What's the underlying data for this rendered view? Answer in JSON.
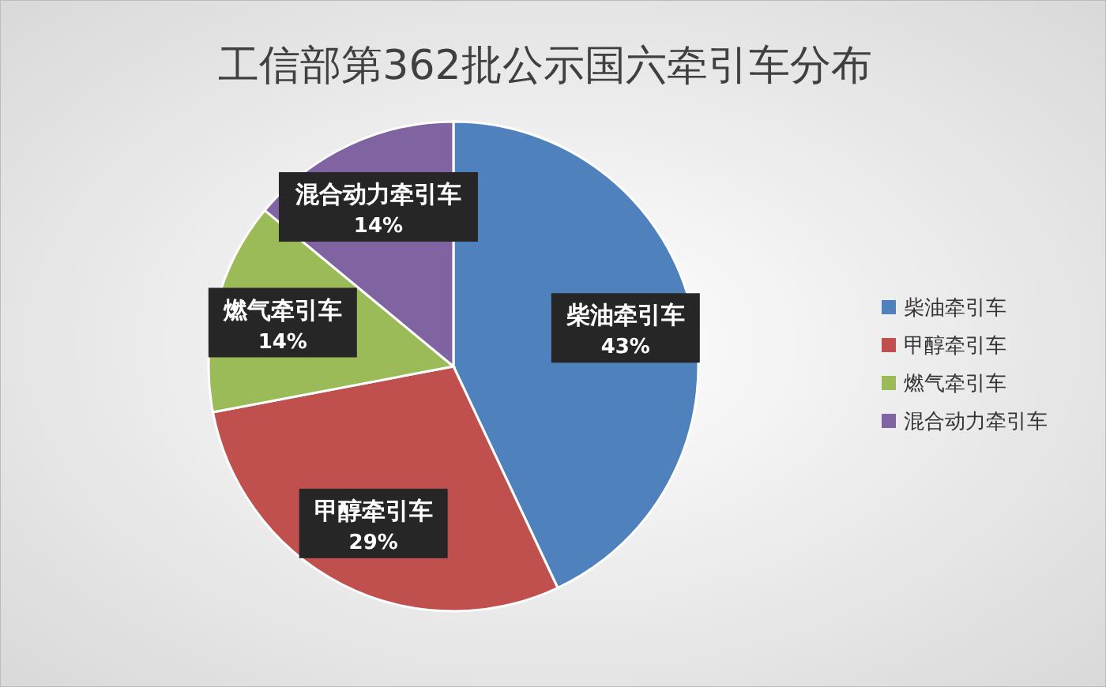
{
  "chart_data": {
    "type": "pie",
    "title": "工信部第362批公示国六牵引车分布",
    "categories": [
      "柴油牵引车",
      "甲醇牵引车",
      "燃气牵引车",
      "混合动力牵引车"
    ],
    "values": [
      43,
      29,
      14,
      14
    ],
    "colors": [
      "#4f81bd",
      "#c0504d",
      "#9bbb59",
      "#8064a2"
    ],
    "value_labels": [
      "43%",
      "29%",
      "14%",
      "14%"
    ],
    "legend": "right"
  }
}
